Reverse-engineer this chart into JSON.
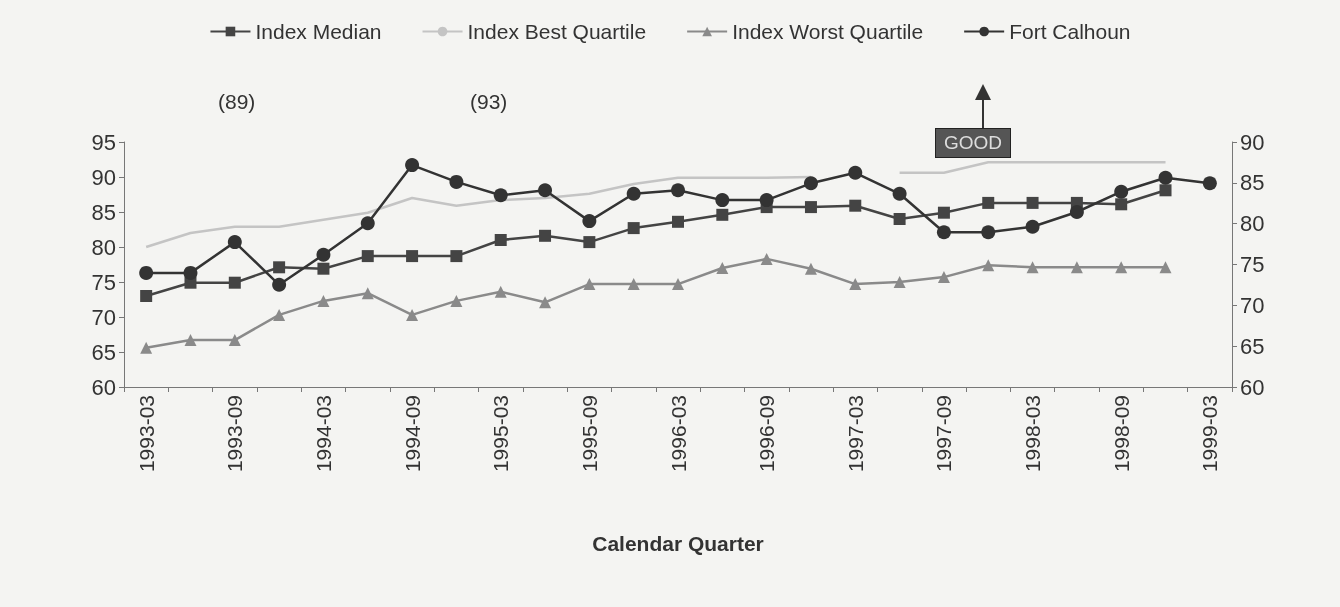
{
  "chart_data": {
    "type": "line",
    "xlabel": "Calendar Quarter",
    "categories": [
      "1993-03",
      null,
      "1993-09",
      null,
      "1994-03",
      null,
      "1994-09",
      null,
      "1995-03",
      null,
      "1995-09",
      null,
      "1996-03",
      null,
      "1996-09",
      null,
      "1997-03",
      null,
      "1997-09",
      null,
      "1998-03",
      null,
      "1998-09",
      null,
      "1999-03"
    ],
    "series": [
      {
        "name": "Index Median",
        "color": "#444444",
        "marker": "square",
        "values": [
          73,
          74.9,
          74.9,
          77.1,
          76.9,
          78.7,
          78.7,
          78.7,
          81,
          81.6,
          80.7,
          82.7,
          83.6,
          84.6,
          85.7,
          85.7,
          85.9,
          84,
          84.9,
          86.3,
          86.3,
          86.3,
          86.1,
          88.1,
          null
        ]
      },
      {
        "name": "Index Best Quartile",
        "color": "#c4c4c4",
        "marker": "none",
        "values": [
          80,
          82,
          82.9,
          82.9,
          83.9,
          84.9,
          87,
          85.9,
          86.7,
          87,
          87.6,
          89,
          89.9,
          89.9,
          89.9,
          90,
          null,
          90.6,
          90.6,
          92.1,
          92.1,
          92.1,
          92.1,
          92.1,
          null
        ]
      },
      {
        "name": "Index Worst Quartile",
        "color": "#8a8a8a",
        "marker": "triangle",
        "values": [
          65.6,
          66.7,
          66.7,
          70.3,
          72.3,
          73.4,
          70.3,
          72.3,
          73.6,
          72.1,
          74.7,
          74.7,
          74.7,
          77,
          78.3,
          76.9,
          74.7,
          75,
          75.7,
          77.4,
          77.1,
          77.1,
          77.1,
          77.1,
          null
        ]
      },
      {
        "name": "Fort Calhoun",
        "color": "#333333",
        "marker": "circle",
        "values": [
          76.3,
          76.3,
          80.7,
          74.6,
          78.9,
          83.4,
          91.7,
          89.3,
          87.4,
          88.1,
          83.7,
          87.6,
          88.1,
          86.7,
          86.7,
          89.1,
          90.6,
          87.6,
          82.1,
          82.1,
          82.9,
          85,
          87.9,
          89.9,
          89.1
        ]
      }
    ],
    "ylim": [
      60,
      95
    ],
    "yticks": [
      60,
      65,
      70,
      75,
      80,
      85,
      90,
      95
    ],
    "y2lim": [
      60,
      90
    ],
    "y2ticks": [
      60,
      65,
      70,
      75,
      80,
      85,
      90
    ],
    "annotations": [
      "(89)",
      "(93)",
      "GOOD"
    ],
    "grid": false,
    "legend": "top"
  }
}
